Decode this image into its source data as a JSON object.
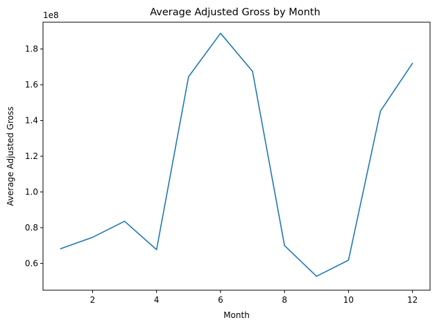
{
  "chart_data": {
    "type": "line",
    "title": "Average Adjusted Gross by Month",
    "xlabel": "Month",
    "ylabel": "Average Adjusted Gross",
    "y_offset_label": "1e8",
    "x": [
      1,
      2,
      3,
      4,
      5,
      6,
      7,
      8,
      9,
      10,
      11,
      12
    ],
    "series": [
      {
        "values": [
          68200000,
          74600000,
          83600000,
          67700000,
          164500000,
          188800000,
          167500000,
          70000000,
          52800000,
          61800000,
          145300000,
          172000000
        ],
        "color": "#1f77b4"
      }
    ],
    "xlim": [
      0.45,
      12.55
    ],
    "ylim": [
      45000000,
      195000000
    ],
    "x_ticks": [
      2,
      4,
      6,
      8,
      10,
      12
    ],
    "x_tick_labels": [
      "2",
      "4",
      "6",
      "8",
      "10",
      "12"
    ],
    "y_ticks": [
      60000000,
      80000000,
      100000000,
      120000000,
      140000000,
      160000000,
      180000000
    ],
    "y_tick_labels": [
      "0.6",
      "0.8",
      "1.0",
      "1.2",
      "1.4",
      "1.6",
      "1.8"
    ],
    "grid": false,
    "legend": "none"
  }
}
